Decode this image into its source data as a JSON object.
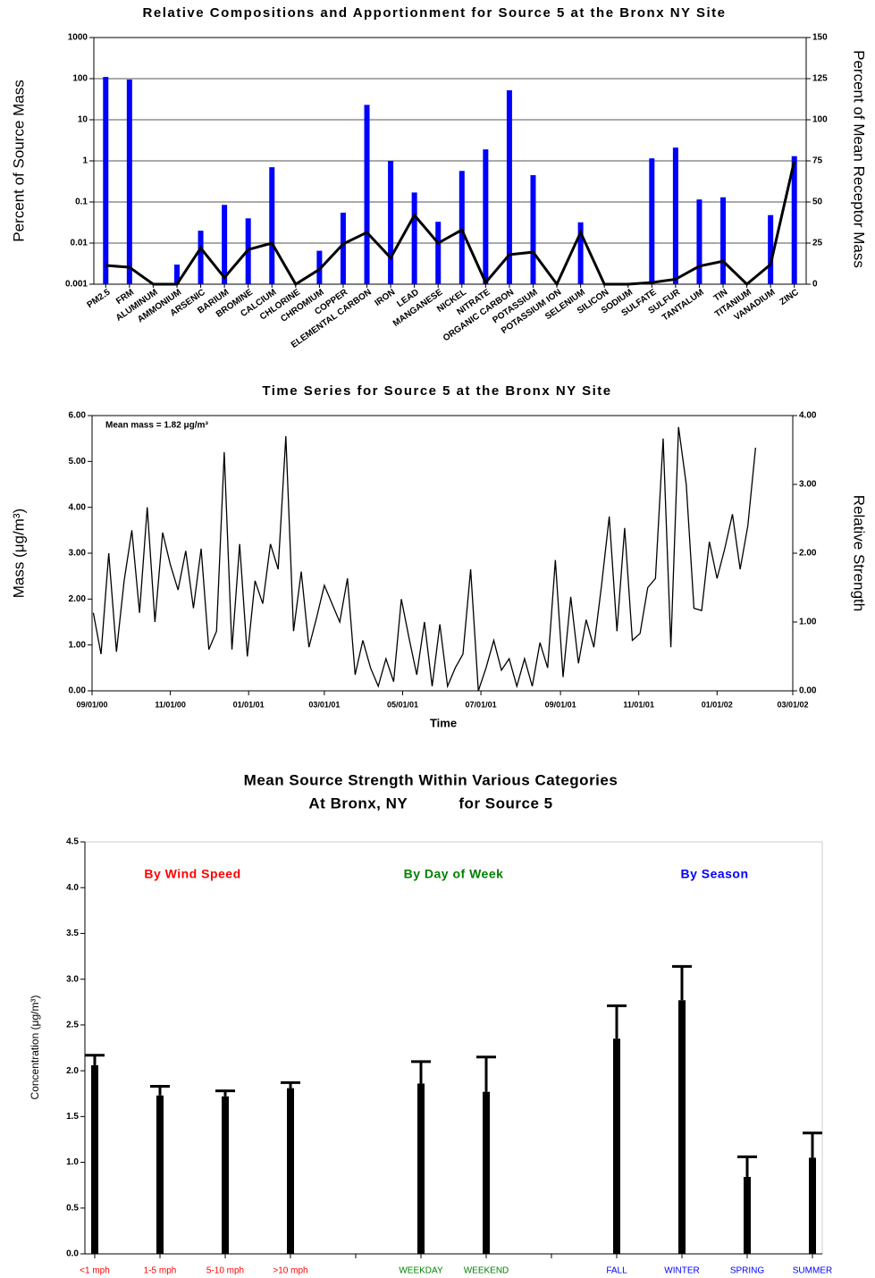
{
  "chart_data": [
    {
      "type": "bar",
      "title": "Relative Compositions and Apportionment for Source 5 at the Bronx NY Site",
      "ylabel": "Percent of Source Mass",
      "y2label": "Percent of Mean Receptor Mass",
      "categories": [
        "PM2.5",
        "FRM",
        "ALUMINUM",
        "AMMONIUM",
        "ARSENIC",
        "BARIUM",
        "BROMINE",
        "CALCIUM",
        "CHLORINE",
        "CHROMIUM",
        "COPPER",
        "ELEMENTAL CARBON",
        "IRON",
        "LEAD",
        "MANGANESE",
        "NICKEL",
        "NITRATE",
        "ORGANIC CARBON",
        "POTASSIUM",
        "POTASSIUM ION",
        "SELENIUM",
        "SILICON",
        "SODIUM",
        "SULFATE",
        "SULFUR",
        "TANTALUM",
        "TIN",
        "TITANIUM",
        "VANADIUM",
        "ZINC"
      ],
      "series": [
        {
          "type": "bar",
          "color": "#0000ff",
          "values": [
            110,
            95,
            null,
            0.003,
            0.02,
            0.085,
            0.04,
            0.7,
            null,
            0.0065,
            0.055,
            23,
            1.0,
            0.17,
            0.033,
            0.57,
            1.9,
            52,
            0.45,
            null,
            0.032,
            null,
            null,
            1.15,
            2.1,
            0.115,
            0.13,
            null,
            0.048,
            1.3
          ]
        },
        {
          "type": "line",
          "axis": "y2",
          "color": "#000000",
          "values": [
            11.4,
            10.3,
            0,
            0,
            22,
            4,
            21,
            25,
            0,
            9,
            24.5,
            31.5,
            16,
            42,
            25,
            33,
            1,
            18,
            19.5,
            0,
            31.5,
            0,
            0,
            1,
            3,
            11,
            14,
            0,
            12,
            75
          ]
        }
      ],
      "log_scale": true,
      "ylim": [
        0.001,
        1000
      ],
      "yticks": [
        0.001,
        0.01,
        0.1,
        1,
        10,
        100,
        1000
      ],
      "y2lim": [
        0,
        150
      ],
      "y2ticks": [
        0,
        25,
        50,
        75,
        100,
        125,
        150
      ],
      "grid": true
    },
    {
      "type": "line",
      "title": "Time Series for Source 5 at the Bronx NY Site",
      "xlabel": "Time",
      "ylabel": "Mass (μg/m³)",
      "y2label": "Relative Strength",
      "annotation": "Mean mass = 1.82 μg/m³",
      "color": "#000000",
      "x": [
        "09/02/00",
        "09/08/00",
        "09/14/00",
        "09/20/00",
        "09/26/00",
        "10/02/00",
        "10/08/00",
        "10/14/00",
        "10/20/00",
        "10/26/00",
        "11/01/00",
        "11/07/00",
        "11/13/00",
        "11/19/00",
        "11/25/00",
        "12/01/00",
        "12/07/00",
        "12/13/00",
        "12/19/00",
        "12/25/00",
        "12/31/00",
        "01/06/01",
        "01/12/01",
        "01/18/01",
        "01/24/01",
        "01/30/01",
        "02/05/01",
        "02/11/01",
        "02/17/01",
        "02/23/01",
        "03/01/01",
        "03/07/01",
        "03/13/01",
        "03/19/01",
        "03/25/01",
        "03/31/01",
        "04/06/01",
        "04/12/01",
        "04/18/01",
        "04/24/01",
        "04/30/01",
        "05/06/01",
        "05/12/01",
        "05/18/01",
        "05/24/01",
        "05/30/01",
        "06/05/01",
        "06/11/01",
        "06/17/01",
        "06/23/01",
        "06/29/01",
        "07/05/01",
        "07/11/01",
        "07/17/01",
        "07/23/01",
        "07/29/01",
        "08/04/01",
        "08/10/01",
        "08/16/01",
        "08/22/01",
        "08/28/01",
        "09/03/01",
        "09/09/01",
        "09/15/01",
        "09/21/01",
        "09/27/01",
        "10/03/01",
        "10/09/01",
        "10/15/01",
        "10/21/01",
        "10/27/01",
        "11/02/01",
        "11/08/01",
        "11/14/01",
        "11/20/01",
        "11/26/01",
        "12/02/01",
        "12/08/01",
        "12/14/01",
        "12/20/01",
        "12/26/01",
        "01/01/02",
        "01/07/02",
        "01/13/02",
        "01/19/02",
        "01/25/02",
        "01/31/02"
      ],
      "values": [
        1.7,
        0.8,
        3.0,
        0.85,
        2.4,
        3.5,
        1.7,
        4.0,
        1.5,
        3.45,
        2.75,
        2.2,
        3.05,
        1.8,
        3.1,
        0.9,
        1.3,
        5.2,
        0.9,
        3.2,
        0.75,
        2.4,
        1.9,
        3.2,
        2.65,
        5.55,
        1.3,
        2.6,
        0.95,
        1.6,
        2.3,
        1.9,
        1.5,
        2.45,
        0.35,
        1.1,
        0.5,
        0.1,
        0.7,
        0.2,
        2.0,
        1.15,
        0.35,
        1.5,
        0.1,
        1.45,
        0.1,
        0.5,
        0.8,
        2.65,
        0,
        0.5,
        1.1,
        0.45,
        0.7,
        0.1,
        0.7,
        0.1,
        1.05,
        0.5,
        2.85,
        0.3,
        2.05,
        0.6,
        1.55,
        0.95,
        2.3,
        3.8,
        1.3,
        3.55,
        1.1,
        1.25,
        2.25,
        2.45,
        5.5,
        0.95,
        5.75,
        4.5,
        1.8,
        1.75,
        3.25,
        2.45,
        3.1,
        3.85,
        2.65,
        3.6,
        5.3
      ],
      "xlim": [
        "09/01/00",
        "03/01/02"
      ],
      "xticks": [
        "09/01/00",
        "11/01/00",
        "01/01/01",
        "03/01/01",
        "05/01/01",
        "07/01/01",
        "09/01/01",
        "11/01/01",
        "01/01/02",
        "03/01/02"
      ],
      "ylim": [
        0,
        6
      ],
      "yticks": [
        {
          "value": 0,
          "label": "0.00"
        },
        {
          "value": 1,
          "label": "1.00"
        },
        {
          "value": 2,
          "label": "2.00"
        },
        {
          "value": 3,
          "label": "3.00"
        },
        {
          "value": 4,
          "label": "4.00"
        },
        {
          "value": 5,
          "label": "5.00"
        },
        {
          "value": 6,
          "label": "6.00"
        }
      ],
      "y2lim": [
        0,
        4
      ],
      "y2ticks": [
        {
          "value": 0,
          "label": "0.00"
        },
        {
          "value": 1,
          "label": "1.00"
        },
        {
          "value": 2,
          "label": "2.00"
        },
        {
          "value": 3,
          "label": "3.00"
        },
        {
          "value": 4,
          "label": "4.00"
        }
      ]
    },
    {
      "type": "bar",
      "title": [
        "Mean Source Strength Within Various Categories",
        "At Bronx, NY           for Source 5"
      ],
      "ylabel": "Concentration (μg/m³)",
      "color": "#000000",
      "groups": [
        {
          "name": "By Wind Speed",
          "color": "#ff0000",
          "categories": [
            "<1 mph",
            "1-5 mph",
            "5-10 mph",
            ">10 mph"
          ],
          "values": [
            2.06,
            1.73,
            1.72,
            1.81
          ],
          "errors": [
            0.11,
            0.1,
            0.06,
            0.06
          ]
        },
        {
          "name": "By Day of Week",
          "color": "#008000",
          "categories": [
            "WEEKDAY",
            "WEEKEND"
          ],
          "values": [
            1.86,
            1.77
          ],
          "errors": [
            0.24,
            0.38
          ]
        },
        {
          "name": "By Season",
          "color": "#0000ff",
          "categories": [
            "FALL",
            "WINTER",
            "SPRING",
            "SUMMER"
          ],
          "values": [
            2.35,
            2.77,
            0.84,
            1.05
          ],
          "errors": [
            0.36,
            0.37,
            0.22,
            0.27
          ]
        }
      ],
      "ylim": [
        0,
        4.5
      ],
      "yticks": [
        {
          "value": 0,
          "label": "0.0"
        },
        0.5,
        {
          "value": 1,
          "label": "1.0"
        },
        1.5,
        {
          "value": 2,
          "label": "2.0"
        },
        2.5,
        {
          "value": 3,
          "label": "3.0"
        },
        3.5,
        {
          "value": 4,
          "label": "4.0"
        },
        4.5
      ]
    }
  ]
}
